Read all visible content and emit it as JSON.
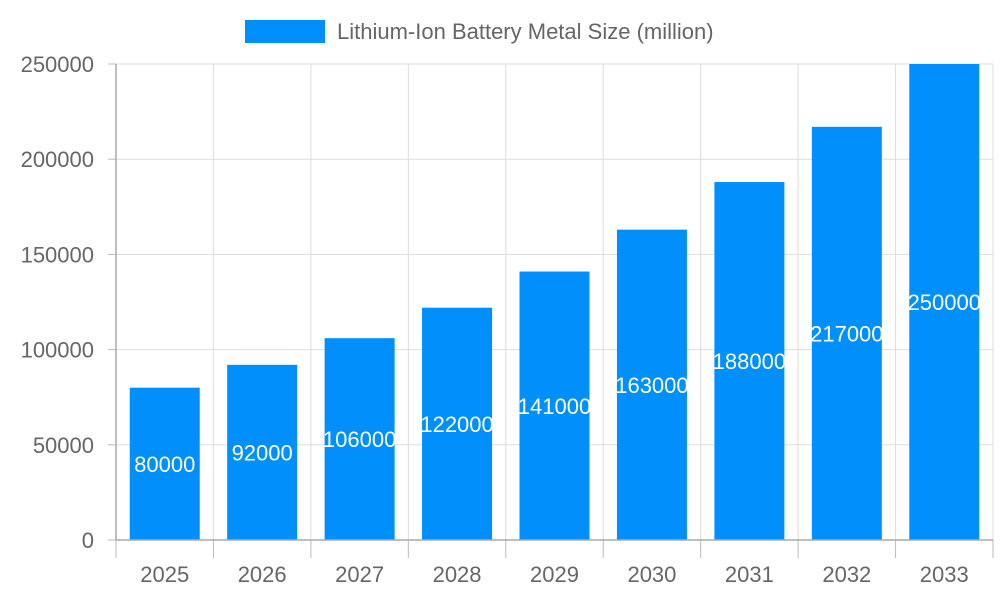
{
  "chart_data": {
    "type": "bar",
    "categories": [
      "2025",
      "2026",
      "2027",
      "2028",
      "2029",
      "2030",
      "2031",
      "2032",
      "2033"
    ],
    "series": [
      {
        "name": "Lithium-Ion Battery Metal Size (million)",
        "values": [
          80000,
          92000,
          106000,
          122000,
          141000,
          163000,
          188000,
          217000,
          250000
        ]
      }
    ],
    "ylim": [
      0,
      250000
    ],
    "yticks": [
      0,
      50000,
      100000,
      150000,
      200000,
      250000
    ],
    "grid": true,
    "legend": "top",
    "data_labels": true,
    "colors": {
      "bar": "#008FFB",
      "text": "#666666",
      "grid": "#DDDDDD"
    }
  }
}
